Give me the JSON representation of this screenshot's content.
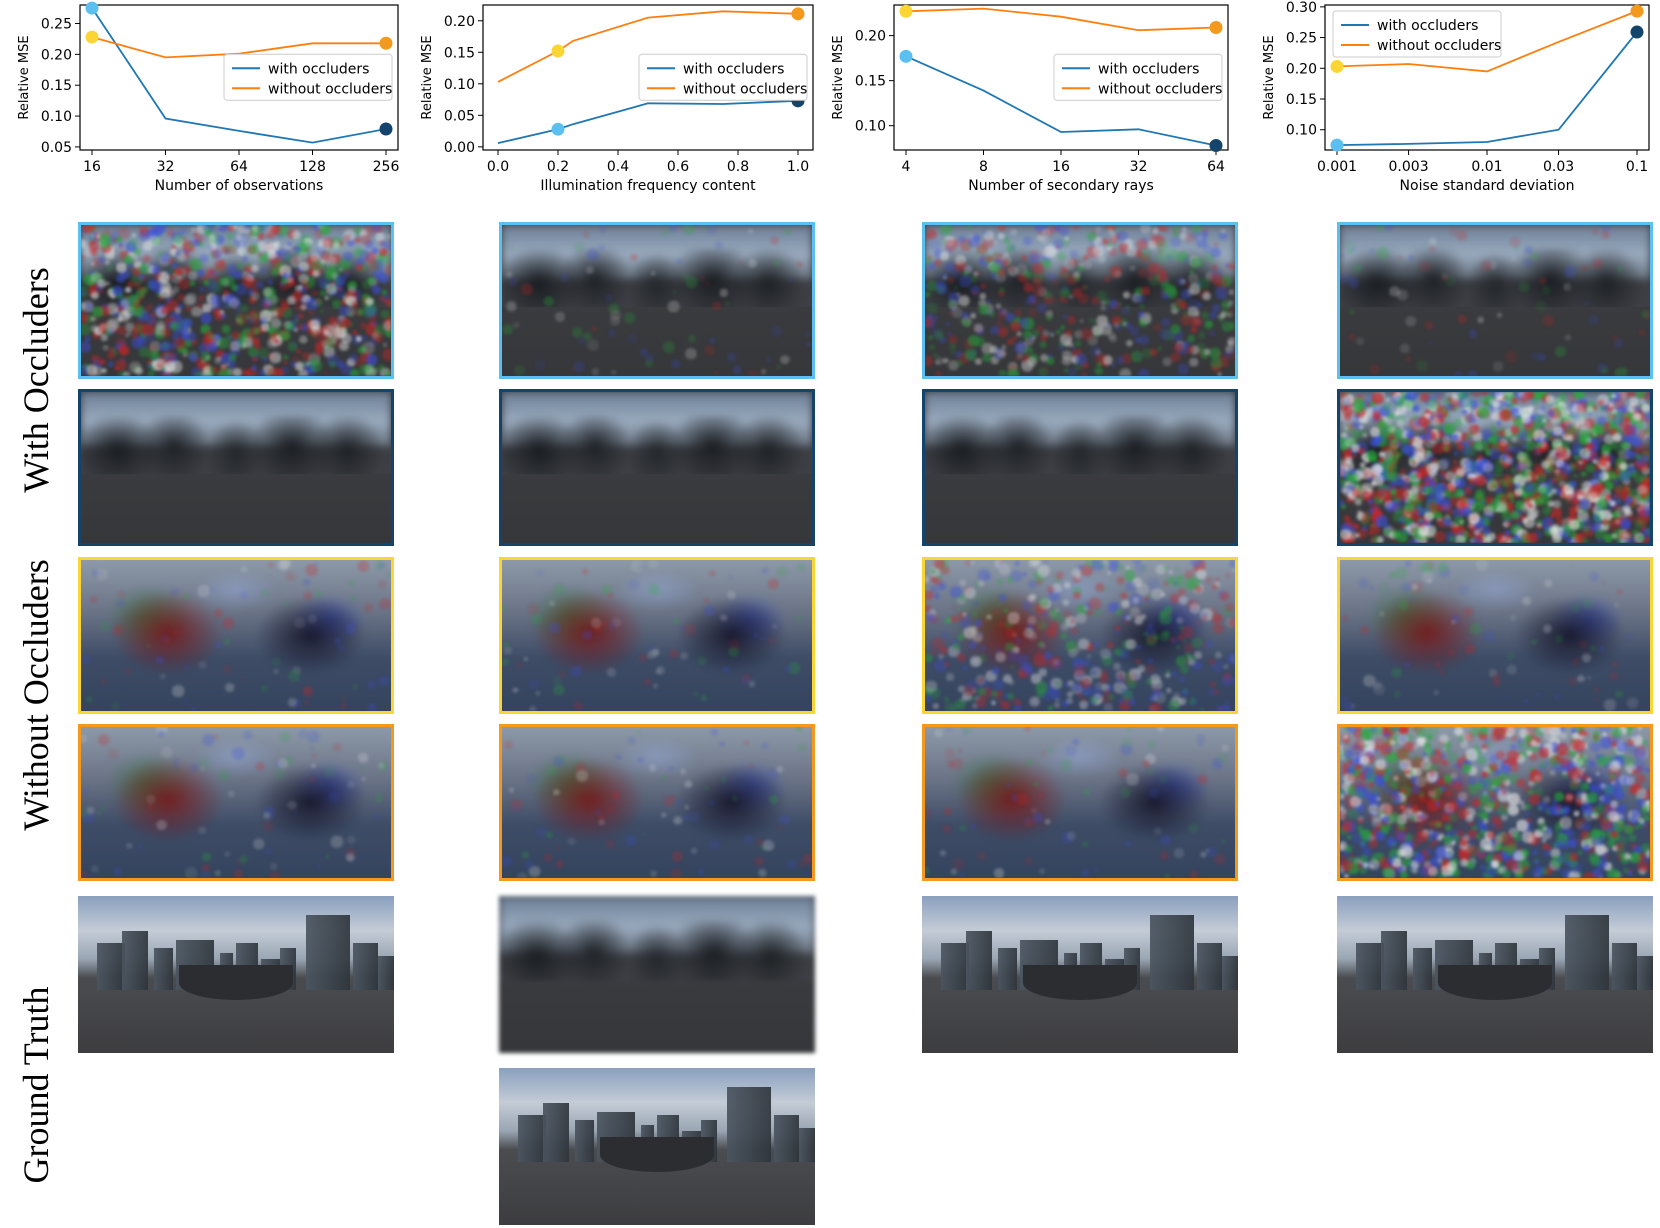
{
  "chart_data": [
    {
      "type": "line",
      "xlabel": "Number of observations",
      "ylabel": "Relative MSE",
      "x_scale": "log2",
      "x": [
        16,
        32,
        64,
        128,
        256
      ],
      "x_tick_labels": [
        "16",
        "32",
        "64",
        "128",
        "256"
      ],
      "ylim": [
        0.045,
        0.28
      ],
      "y_ticks": [
        0.05,
        0.1,
        0.15,
        0.2,
        0.25
      ],
      "y_tick_labels": [
        "0.05",
        "0.10",
        "0.15",
        "0.20",
        "0.25"
      ],
      "legend": "center-right",
      "series": [
        {
          "name": "with occluders",
          "color": "#1f77b4",
          "values": [
            0.275,
            0.096,
            0.076,
            0.057,
            0.079
          ]
        },
        {
          "name": "without occluders",
          "color": "#ff7f0e",
          "values": [
            0.228,
            0.195,
            0.201,
            0.218,
            0.218
          ]
        }
      ],
      "markers": [
        {
          "x": 16,
          "y": 0.275,
          "color": "#5bc0f0"
        },
        {
          "x": 16,
          "y": 0.228,
          "color": "#fbd534"
        },
        {
          "x": 256,
          "y": 0.079,
          "color": "#14436b"
        },
        {
          "x": 256,
          "y": 0.218,
          "color": "#f39a1e"
        }
      ]
    },
    {
      "type": "line",
      "xlabel": "Illumination frequency content",
      "ylabel": "Relative MSE",
      "x_scale": "linear",
      "x": [
        0.0,
        0.2,
        0.25,
        0.5,
        0.75,
        1.0
      ],
      "x_ticks": [
        0.0,
        0.2,
        0.4,
        0.6,
        0.8,
        1.0
      ],
      "x_tick_labels": [
        "0.0",
        "0.2",
        "0.4",
        "0.6",
        "0.8",
        "1.0"
      ],
      "xlim": [
        -0.05,
        1.05
      ],
      "ylim": [
        -0.005,
        0.225
      ],
      "y_ticks": [
        0.0,
        0.05,
        0.1,
        0.15,
        0.2
      ],
      "y_tick_labels": [
        "0.00",
        "0.05",
        "0.10",
        "0.15",
        "0.20"
      ],
      "legend": "center-right",
      "series": [
        {
          "name": "with occluders",
          "color": "#1f77b4",
          "x": [
            0.0,
            0.2,
            0.25,
            0.5,
            0.75,
            1.0
          ],
          "values": [
            0.006,
            0.028,
            0.036,
            0.069,
            0.068,
            0.073
          ]
        },
        {
          "name": "without occluders",
          "color": "#ff7f0e",
          "x": [
            0.0,
            0.2,
            0.25,
            0.5,
            0.75,
            1.0
          ],
          "values": [
            0.103,
            0.152,
            0.168,
            0.205,
            0.215,
            0.211
          ]
        }
      ],
      "markers": [
        {
          "x": 0.2,
          "y": 0.028,
          "color": "#5bc0f0"
        },
        {
          "x": 0.2,
          "y": 0.152,
          "color": "#fbd534"
        },
        {
          "x": 1.0,
          "y": 0.073,
          "color": "#14436b"
        },
        {
          "x": 1.0,
          "y": 0.211,
          "color": "#f39a1e"
        }
      ]
    },
    {
      "type": "line",
      "xlabel": "Number of secondary rays",
      "ylabel": "Relative MSE",
      "x_scale": "log2",
      "x": [
        4,
        8,
        16,
        32,
        64
      ],
      "x_tick_labels": [
        "4",
        "8",
        "16",
        "32",
        "64"
      ],
      "ylim": [
        0.073,
        0.234
      ],
      "y_ticks": [
        0.1,
        0.15,
        0.2
      ],
      "y_tick_labels": [
        "0.10",
        "0.15",
        "0.20"
      ],
      "legend": "center-right",
      "series": [
        {
          "name": "with occluders",
          "color": "#1f77b4",
          "values": [
            0.177,
            0.139,
            0.093,
            0.096,
            0.078
          ]
        },
        {
          "name": "without occluders",
          "color": "#ff7f0e",
          "values": [
            0.227,
            0.23,
            0.221,
            0.206,
            0.209
          ]
        }
      ],
      "markers": [
        {
          "x": 4,
          "y": 0.177,
          "color": "#5bc0f0"
        },
        {
          "x": 4,
          "y": 0.227,
          "color": "#fbd534"
        },
        {
          "x": 64,
          "y": 0.078,
          "color": "#14436b"
        },
        {
          "x": 64,
          "y": 0.209,
          "color": "#f39a1e"
        }
      ]
    },
    {
      "type": "line",
      "xlabel": "Noise standard deviation",
      "ylabel": "Relative MSE",
      "x_scale": "log10",
      "x": [
        0.001,
        0.003,
        0.01,
        0.03,
        0.1
      ],
      "x_tick_labels": [
        "0.001",
        "0.003",
        "0.01",
        "0.03",
        "0.1"
      ],
      "ylim": [
        0.067,
        0.303
      ],
      "y_ticks": [
        0.1,
        0.15,
        0.2,
        0.25,
        0.3
      ],
      "y_tick_labels": [
        "0.10",
        "0.15",
        "0.20",
        "0.25",
        "0.30"
      ],
      "legend": "top-left",
      "series": [
        {
          "name": "with occluders",
          "color": "#1f77b4",
          "values": [
            0.075,
            0.077,
            0.08,
            0.1,
            0.259
          ]
        },
        {
          "name": "without occluders",
          "color": "#ff7f0e",
          "values": [
            0.203,
            0.207,
            0.195,
            0.243,
            0.293
          ]
        }
      ],
      "markers": [
        {
          "x": 0.001,
          "y": 0.075,
          "color": "#5bc0f0"
        },
        {
          "x": 0.001,
          "y": 0.203,
          "color": "#fbd534"
        },
        {
          "x": 0.1,
          "y": 0.259,
          "color": "#14436b"
        },
        {
          "x": 0.1,
          "y": 0.293,
          "color": "#f39a1e"
        }
      ]
    }
  ],
  "row_labels": {
    "with": "With Occluders",
    "without": "Without Occluders",
    "ground_truth": "Ground Truth"
  },
  "frame_colors": {
    "light_blue": "#5bc0f0",
    "dark_blue": "#14436b",
    "yellow": "#fbd534",
    "orange": "#f39a1e"
  },
  "panels": [
    {
      "row": "with-low",
      "style": "trees-noisy",
      "frame": "light_blue",
      "cols": [
        0,
        1,
        2,
        3
      ],
      "noise": [
        0.55,
        0.05,
        0.35,
        0.05
      ]
    },
    {
      "row": "with-high",
      "style": "trees",
      "frame": "dark_blue",
      "cols": [
        0,
        1,
        2,
        3
      ],
      "noise": [
        0.0,
        0.0,
        0.0,
        0.85
      ]
    },
    {
      "row": "without-low",
      "style": "blobs",
      "frame": "yellow",
      "cols": [
        0,
        1,
        2,
        3
      ],
      "noise": [
        0.05,
        0.05,
        0.3,
        0.05
      ]
    },
    {
      "row": "without-high",
      "style": "blobs",
      "frame": "orange",
      "cols": [
        0,
        1,
        2,
        3
      ],
      "noise": [
        0.05,
        0.05,
        0.05,
        0.6
      ]
    },
    {
      "row": "gt",
      "style": "city",
      "cols": [
        0,
        2,
        3
      ]
    },
    {
      "row": "gt",
      "style": "blurred",
      "cols": [
        1
      ]
    },
    {
      "row": "gt2",
      "style": "city",
      "cols": [
        1
      ]
    }
  ]
}
